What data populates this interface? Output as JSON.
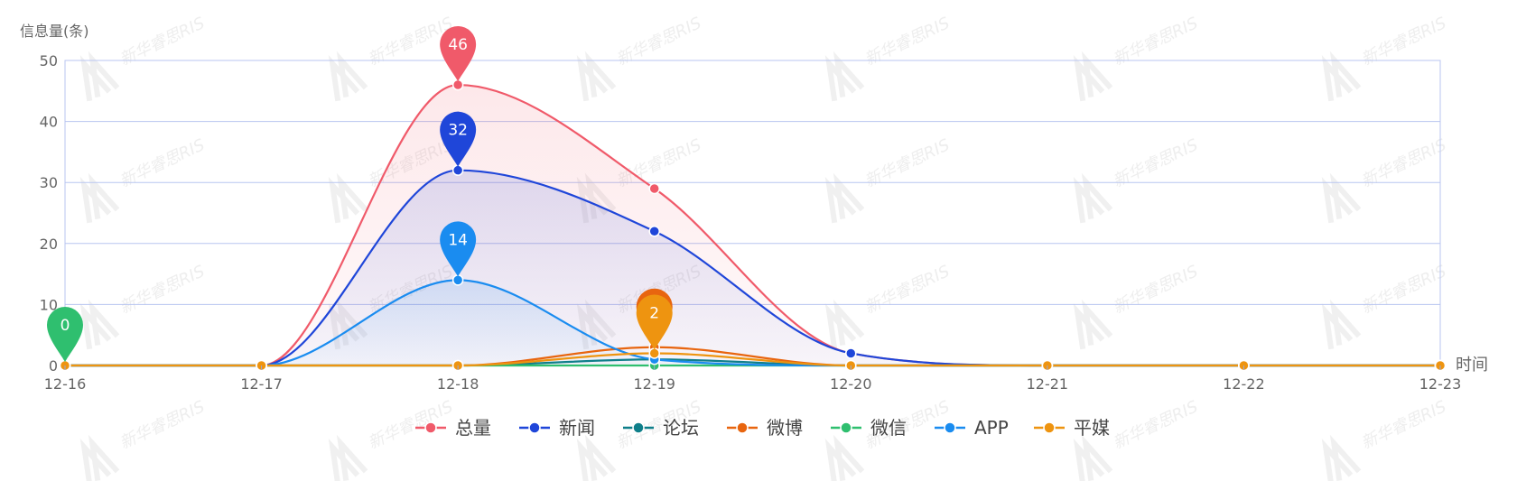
{
  "chart_data": {
    "type": "line",
    "title": "",
    "xlabel": "时间",
    "ylabel": "信息量(条)",
    "categories": [
      "12-16",
      "12-17",
      "12-18",
      "12-19",
      "12-20",
      "12-21",
      "12-22",
      "12-23"
    ],
    "ylim": [
      0,
      50
    ],
    "yticks": [
      0,
      10,
      20,
      30,
      40,
      50
    ],
    "grid": true,
    "legend_position": "bottom",
    "series": [
      {
        "name": "总量",
        "color": "#f05a6a",
        "values": [
          0,
          0,
          46,
          29,
          2,
          0,
          0,
          0
        ],
        "area": true
      },
      {
        "name": "新闻",
        "color": "#1f46d9",
        "values": [
          0,
          0,
          32,
          22,
          2,
          0,
          0,
          0
        ],
        "area": true
      },
      {
        "name": "论坛",
        "color": "#0f7f8a",
        "values": [
          0,
          0,
          0,
          1,
          0,
          0,
          0,
          0
        ]
      },
      {
        "name": "微博",
        "color": "#e8650f",
        "values": [
          0,
          0,
          0,
          3,
          0,
          0,
          0,
          0
        ]
      },
      {
        "name": "微信",
        "color": "#2fbf6f",
        "values": [
          0,
          0,
          0,
          0,
          0,
          0,
          0,
          0
        ]
      },
      {
        "name": "APP",
        "color": "#1a8cf0",
        "values": [
          0,
          0,
          14,
          1,
          0,
          0,
          0,
          0
        ],
        "area": true
      },
      {
        "name": "平媒",
        "color": "#ee9410",
        "values": [
          0,
          0,
          0,
          2,
          0,
          0,
          0,
          0
        ]
      }
    ],
    "max_markers": [
      {
        "series": "总量",
        "x": "12-18",
        "value": 46
      },
      {
        "series": "新闻",
        "x": "12-18",
        "value": 32
      },
      {
        "series": "APP",
        "x": "12-18",
        "value": 14
      },
      {
        "series": "微博",
        "x": "12-19",
        "value": 3
      },
      {
        "series": "平媒",
        "x": "12-19",
        "value": 2
      },
      {
        "series": "微信",
        "x": "12-16",
        "value": 0
      }
    ],
    "watermark": "新华睿思RIS"
  }
}
